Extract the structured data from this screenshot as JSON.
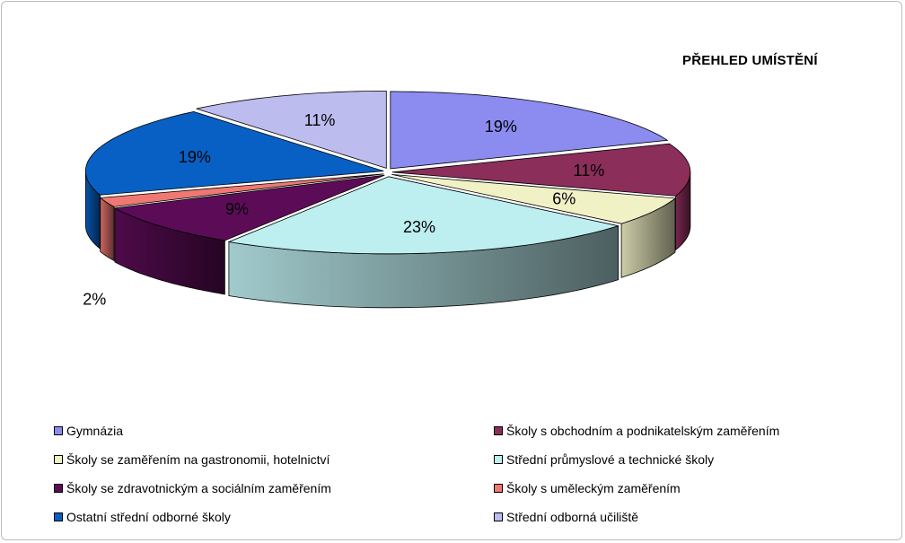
{
  "chart_data": {
    "type": "pie",
    "title": "PŘEHLED UMÍSTĚNÍ",
    "series": [
      {
        "categories": [
          "Gymnázia",
          "Školy s obchodním  a podnikatelským  zaměřením",
          "Školy se zaměřením  na gastronomii, hotelnictví",
          "Střední průmyslové  a technické školy",
          "Školy se zdravotnickým a sociálním zaměřením",
          "Školy s uměleckým zaměřením",
          "Ostatní střední odborné  školy",
          "Střední odborná  učiliště"
        ],
        "values": [
          19,
          11,
          6,
          23,
          9,
          2,
          19,
          11
        ],
        "labels": [
          "19%",
          "11%",
          "6%",
          "23%",
          "9%",
          "2%",
          "19%",
          "11%"
        ]
      }
    ],
    "colors": [
      "#8b8bf0",
      "#8b2e5a",
      "#f1f1c6",
      "#bdeef0",
      "#5c0c57",
      "#f07872",
      "#0860c4",
      "#bcbcee"
    ],
    "legend_position": "bottom",
    "style": "3d-exploded"
  }
}
